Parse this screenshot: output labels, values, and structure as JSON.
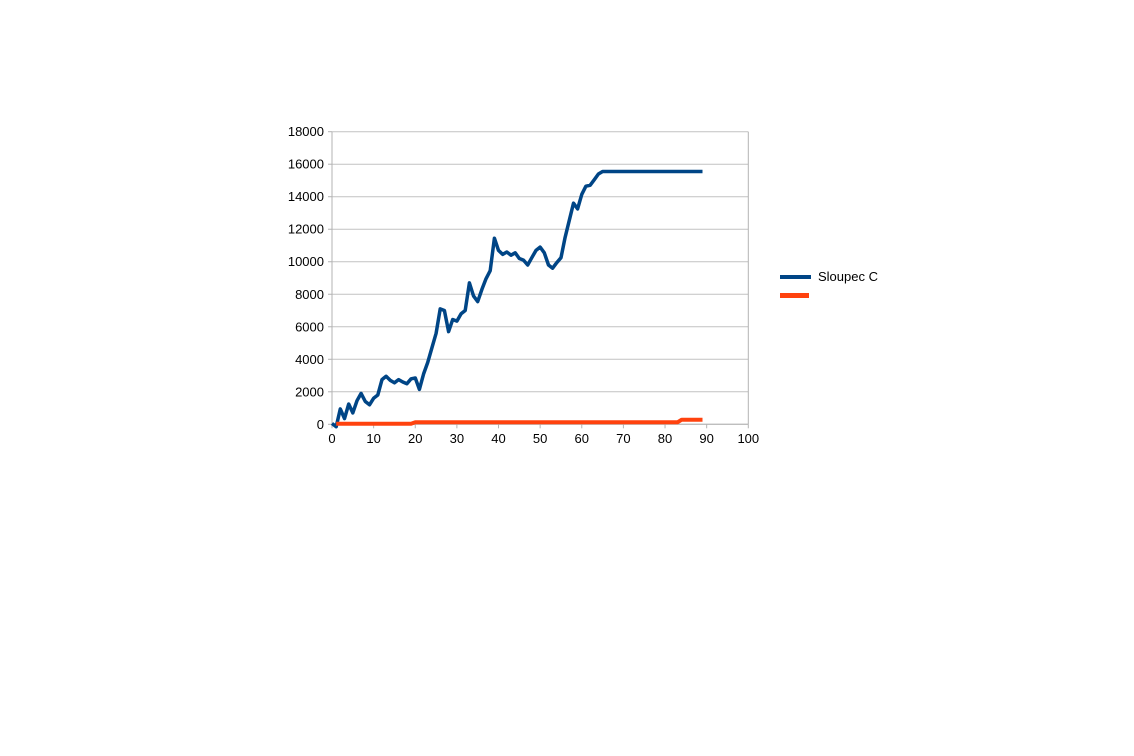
{
  "page": {
    "background_color": "#ffffff"
  },
  "chart_data": {
    "type": "line",
    "title": "",
    "xlabel": "",
    "ylabel": "",
    "xlim": [
      0,
      100
    ],
    "ylim": [
      0,
      18000
    ],
    "xticks": [
      0,
      10,
      20,
      30,
      40,
      50,
      60,
      70,
      80,
      90,
      100
    ],
    "yticks": [
      0,
      2000,
      4000,
      6000,
      8000,
      10000,
      12000,
      14000,
      16000,
      18000
    ],
    "grid": "horizontal",
    "legend_position": "right",
    "grid_color": "#c2c2c2",
    "axis_color": "#b3b3b3",
    "tick_label_color": "#000000",
    "series": [
      {
        "name": "Sloupec C",
        "color": "#004586",
        "stroke_width": 3.5,
        "x": [
          0,
          1,
          2,
          3,
          4,
          5,
          6,
          7,
          8,
          9,
          10,
          11,
          12,
          13,
          14,
          15,
          16,
          17,
          18,
          19,
          20,
          21,
          22,
          23,
          24,
          25,
          26,
          27,
          28,
          29,
          30,
          31,
          32,
          33,
          34,
          35,
          36,
          37,
          38,
          39,
          40,
          41,
          42,
          43,
          44,
          45,
          46,
          47,
          48,
          49,
          50,
          51,
          52,
          53,
          54,
          55,
          56,
          57,
          58,
          59,
          60,
          61,
          62,
          63,
          64,
          65,
          66,
          67,
          68,
          69,
          70,
          71,
          72,
          73,
          74,
          75,
          76,
          77,
          78,
          79,
          80,
          81,
          82,
          83,
          84,
          85,
          86,
          87,
          88,
          89
        ],
        "y": [
          50,
          -150,
          950,
          350,
          1250,
          700,
          1450,
          1900,
          1400,
          1200,
          1600,
          1800,
          2750,
          2950,
          2700,
          2550,
          2750,
          2600,
          2500,
          2800,
          2850,
          2150,
          3100,
          3800,
          4700,
          5600,
          7100,
          7000,
          5700,
          6450,
          6350,
          6800,
          7000,
          8700,
          7900,
          7550,
          8300,
          8950,
          9450,
          11450,
          10700,
          10450,
          10600,
          10400,
          10550,
          10200,
          10100,
          9800,
          10250,
          10700,
          10900,
          10550,
          9800,
          9600,
          9950,
          10250,
          11500,
          12550,
          13600,
          13250,
          14150,
          14650,
          14700,
          15050,
          15400,
          15550,
          15550,
          15550,
          15550,
          15550,
          15550,
          15550,
          15550,
          15550,
          15550,
          15550,
          15550,
          15550,
          15550,
          15550,
          15550,
          15550,
          15550,
          15550,
          15550,
          15550,
          15550,
          15550,
          15550,
          15550
        ]
      },
      {
        "name": "",
        "color": "#ff420e",
        "stroke_width": 4,
        "x": [
          1,
          2,
          3,
          4,
          5,
          6,
          7,
          8,
          9,
          10,
          11,
          12,
          13,
          14,
          15,
          16,
          17,
          18,
          19,
          20,
          21,
          22,
          23,
          24,
          25,
          26,
          27,
          28,
          29,
          30,
          31,
          32,
          33,
          34,
          35,
          36,
          37,
          38,
          39,
          40,
          41,
          42,
          43,
          44,
          45,
          46,
          47,
          48,
          49,
          50,
          51,
          52,
          53,
          54,
          55,
          56,
          57,
          58,
          59,
          60,
          61,
          62,
          63,
          64,
          65,
          66,
          67,
          68,
          69,
          70,
          71,
          72,
          73,
          74,
          75,
          76,
          77,
          78,
          79,
          80,
          81,
          82,
          83,
          84,
          85,
          86,
          87,
          88,
          89
        ],
        "y": [
          30,
          30,
          30,
          30,
          30,
          30,
          30,
          30,
          30,
          30,
          30,
          30,
          30,
          30,
          30,
          30,
          30,
          30,
          30,
          120,
          120,
          120,
          120,
          120,
          120,
          120,
          120,
          120,
          120,
          120,
          120,
          120,
          120,
          120,
          120,
          120,
          120,
          120,
          120,
          120,
          120,
          120,
          120,
          120,
          120,
          120,
          120,
          120,
          120,
          120,
          120,
          120,
          120,
          120,
          120,
          120,
          120,
          120,
          120,
          120,
          120,
          120,
          120,
          120,
          120,
          120,
          120,
          120,
          120,
          120,
          120,
          120,
          120,
          120,
          120,
          120,
          120,
          120,
          120,
          120,
          120,
          120,
          120,
          280,
          280,
          280,
          280,
          280,
          280
        ]
      }
    ]
  },
  "legend": {
    "entries": [
      {
        "label": "Sloupec C"
      },
      {
        "label": ""
      }
    ]
  }
}
